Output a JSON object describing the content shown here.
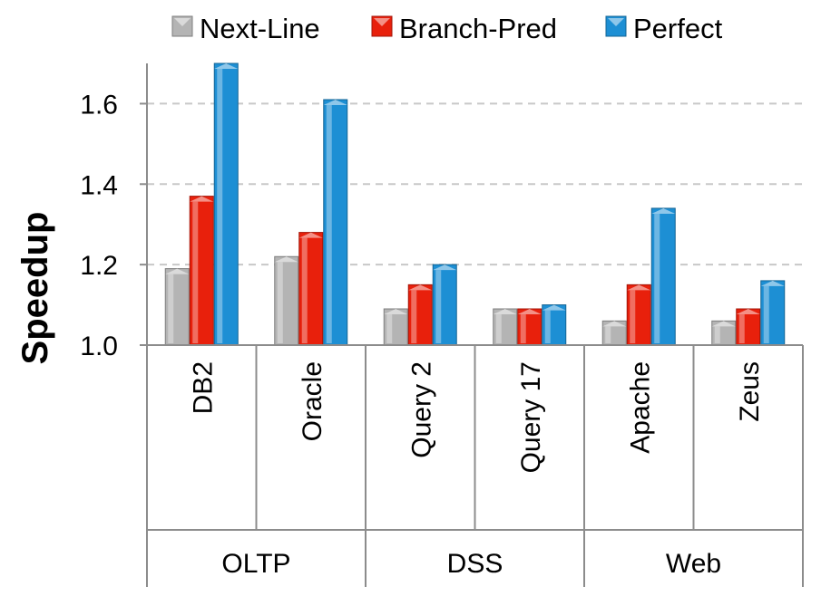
{
  "chart_data": {
    "type": "bar",
    "title": "",
    "xlabel": "",
    "ylabel": "Speedup",
    "ylim": [
      1.0,
      1.7
    ],
    "yticks": [
      "1.0",
      "1.2",
      "1.4",
      "1.6"
    ],
    "grid": "horizontal dashed",
    "legend_position": "top",
    "groups": [
      {
        "name": "OLTP",
        "categories": [
          "DB2",
          "Oracle"
        ]
      },
      {
        "name": "DSS",
        "categories": [
          "Query 2",
          "Query 17"
        ]
      },
      {
        "name": "Web",
        "categories": [
          "Apache",
          "Zeus"
        ]
      }
    ],
    "categories": [
      "DB2",
      "Oracle",
      "Query 2",
      "Query 17",
      "Apache",
      "Zeus"
    ],
    "series": [
      {
        "name": "Next-Line",
        "color": "#b4b4b4",
        "values": [
          1.19,
          1.22,
          1.09,
          1.09,
          1.06,
          1.06
        ]
      },
      {
        "name": "Branch-Pred",
        "color": "#e8200c",
        "values": [
          1.37,
          1.28,
          1.15,
          1.09,
          1.15,
          1.09
        ]
      },
      {
        "name": "Perfect",
        "color": "#1d8fd4",
        "values": [
          1.7,
          1.61,
          1.2,
          1.1,
          1.34,
          1.16
        ]
      }
    ]
  }
}
